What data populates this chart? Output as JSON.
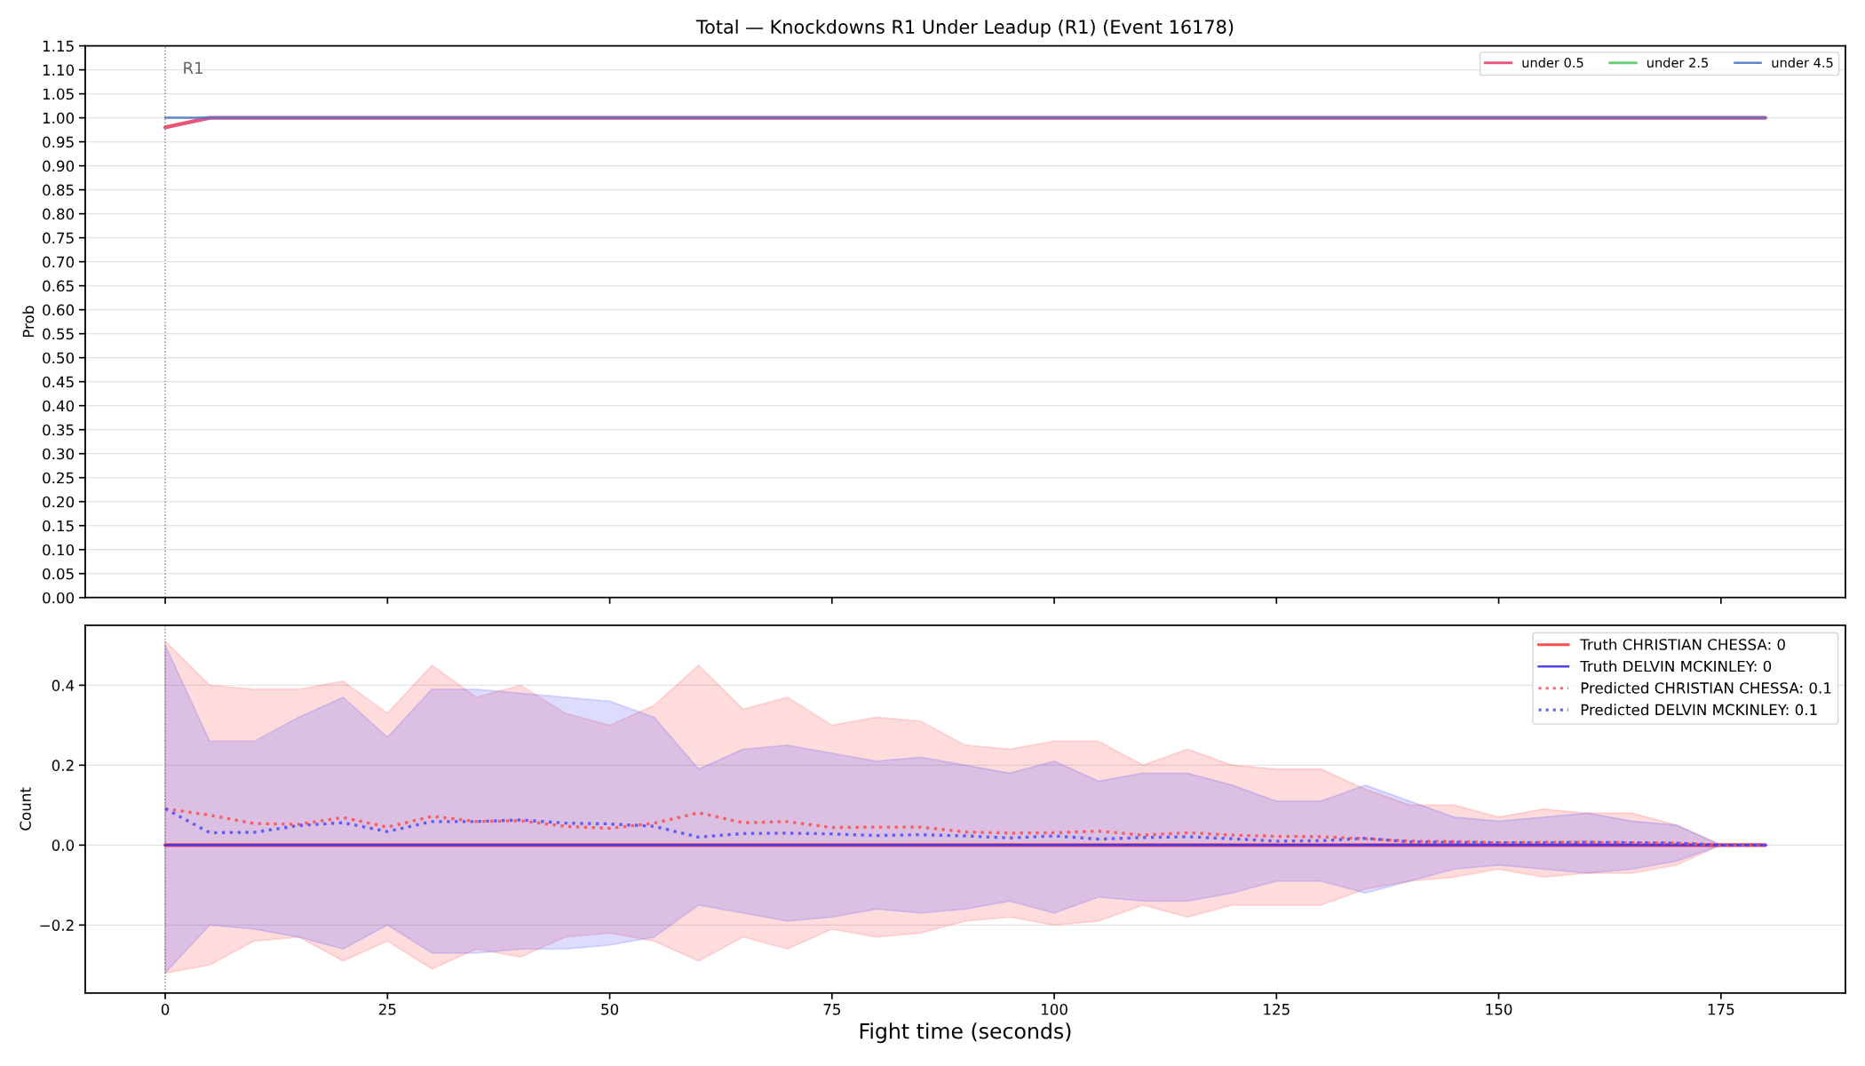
{
  "chart_data": [
    {
      "type": "line",
      "title": "Total — Knockdowns R1 Under Leadup (R1) (Event 16178)",
      "ylabel": "Prob",
      "x": [
        0,
        5,
        10,
        15,
        20,
        25,
        30,
        35,
        40,
        45,
        50,
        55,
        60,
        65,
        70,
        75,
        80,
        85,
        90,
        95,
        100,
        105,
        110,
        115,
        120,
        125,
        130,
        135,
        140,
        145,
        150,
        155,
        160,
        165,
        170,
        175,
        180
      ],
      "series": [
        {
          "name": "under 0.5",
          "color": "#e8446a",
          "values": [
            0.98,
            1,
            1,
            1,
            1,
            1,
            1,
            1,
            1,
            1,
            1,
            1,
            1,
            1,
            1,
            1,
            1,
            1,
            1,
            1,
            1,
            1,
            1,
            1,
            1,
            1,
            1,
            1,
            1,
            1,
            1,
            1,
            1,
            1,
            1,
            1,
            1
          ]
        },
        {
          "name": "under 2.5",
          "color": "#5cc46a",
          "values": [
            null,
            null,
            null,
            null,
            null,
            null,
            null,
            null,
            null,
            null,
            null,
            null,
            null,
            null,
            null,
            null,
            null,
            null,
            null,
            null,
            null,
            null,
            null,
            null,
            null,
            null,
            null,
            null,
            null,
            null,
            null,
            null,
            null,
            null,
            null,
            null,
            null
          ]
        },
        {
          "name": "under 4.5",
          "color": "#4a78c8",
          "values": [
            1,
            1,
            1,
            1,
            1,
            1,
            1,
            1,
            1,
            1,
            1,
            1,
            1,
            1,
            1,
            1,
            1,
            1,
            1,
            1,
            1,
            1,
            1,
            1,
            1,
            1,
            1,
            1,
            1,
            1,
            1,
            1,
            1,
            1,
            1,
            1,
            1
          ]
        }
      ],
      "xlim": [
        -9,
        189
      ],
      "xticks": [
        0,
        25,
        50,
        75,
        100,
        125,
        150,
        175
      ],
      "ylim": [
        0,
        1.15
      ],
      "yticks": [
        {
          "value": 0,
          "label": "0.00"
        },
        0.05,
        {
          "value": 0.1,
          "label": "0.10"
        },
        0.15,
        {
          "value": 0.2,
          "label": "0.20"
        },
        0.25,
        {
          "value": 0.3,
          "label": "0.30"
        },
        0.35,
        {
          "value": 0.4,
          "label": "0.40"
        },
        0.45,
        {
          "value": 0.5,
          "label": "0.50"
        },
        0.55,
        {
          "value": 0.6,
          "label": "0.60"
        },
        0.65,
        {
          "value": 0.7,
          "label": "0.70"
        },
        0.75,
        {
          "value": 0.8,
          "label": "0.80"
        },
        0.85,
        {
          "value": 0.9,
          "label": "0.90"
        },
        0.95,
        {
          "value": 1,
          "label": "1.00"
        },
        1.05,
        {
          "value": 1.1,
          "label": "1.10"
        },
        1.15
      ],
      "tick_labels": "y",
      "grid": "y",
      "legend": "top right",
      "line_style": "solid",
      "ref_lines": [
        {
          "axis": "x",
          "value": 0,
          "label": "R1",
          "color": "#808080",
          "line_style": "dotted"
        }
      ]
    },
    {
      "type": "line",
      "xlabel": "Fight time (seconds)",
      "ylabel": "Count",
      "x": [
        0,
        5,
        10,
        15,
        20,
        25,
        30,
        35,
        40,
        45,
        50,
        55,
        60,
        65,
        70,
        75,
        80,
        85,
        90,
        95,
        100,
        105,
        110,
        115,
        120,
        125,
        130,
        135,
        140,
        145,
        150,
        155,
        160,
        165,
        170,
        175,
        180
      ],
      "series": [
        {
          "name": "Truth CHRISTIAN CHESSA: 0",
          "color": "#ff3c3c",
          "line_style": "solid",
          "values": [
            0,
            0,
            0,
            0,
            0,
            0,
            0,
            0,
            0,
            0,
            0,
            0,
            0,
            0,
            0,
            0,
            0,
            0,
            0,
            0,
            0,
            0,
            0,
            0,
            0,
            0,
            0,
            0,
            0,
            0,
            0,
            0,
            0,
            0,
            0,
            0,
            0
          ]
        },
        {
          "name": "Truth DELVIN MCKINLEY: 0",
          "color": "#3c32f0",
          "line_style": "solid",
          "values": [
            0,
            0,
            0,
            0,
            0,
            0,
            0,
            0,
            0,
            0,
            0,
            0,
            0,
            0,
            0,
            0,
            0,
            0,
            0,
            0,
            0,
            0,
            0,
            0,
            0,
            0,
            0,
            0,
            0,
            0,
            0,
            0,
            0,
            0,
            0,
            0,
            0
          ]
        },
        {
          "name": "Predicted CHRISTIAN CHESSA: 0.1",
          "color": "#ff5050",
          "line_style": "dotted",
          "values": [
            0.091,
            0.075,
            0.054,
            0.052,
            0.069,
            0.045,
            0.072,
            0.059,
            0.061,
            0.047,
            0.042,
            0.055,
            0.081,
            0.056,
            0.059,
            0.044,
            0.045,
            0.045,
            0.033,
            0.03,
            0.031,
            0.035,
            0.025,
            0.031,
            0.025,
            0.022,
            0.021,
            0.016,
            0.01,
            0.009,
            0.006,
            0.007,
            0.007,
            0.006,
            0.005,
            0,
            0
          ],
          "lower": [
            -0.32,
            -0.3,
            -0.24,
            -0.23,
            -0.29,
            -0.24,
            -0.31,
            -0.26,
            -0.28,
            -0.23,
            -0.22,
            -0.24,
            -0.29,
            -0.23,
            -0.26,
            -0.21,
            -0.23,
            -0.22,
            -0.19,
            -0.18,
            -0.2,
            -0.19,
            -0.15,
            -0.18,
            -0.15,
            -0.15,
            -0.15,
            -0.11,
            -0.09,
            -0.08,
            -0.06,
            -0.08,
            -0.07,
            -0.07,
            -0.05,
            0,
            0
          ],
          "upper": [
            0.51,
            0.4,
            0.39,
            0.39,
            0.41,
            0.33,
            0.45,
            0.37,
            0.4,
            0.33,
            0.3,
            0.35,
            0.45,
            0.34,
            0.37,
            0.3,
            0.32,
            0.31,
            0.25,
            0.24,
            0.26,
            0.26,
            0.2,
            0.24,
            0.2,
            0.19,
            0.19,
            0.14,
            0.1,
            0.1,
            0.07,
            0.09,
            0.08,
            0.08,
            0.05,
            0,
            0
          ]
        },
        {
          "name": "Predicted DELVIN MCKINLEY: 0.1",
          "color": "#5050ff",
          "line_style": "dotted",
          "values": [
            0.091,
            0.031,
            0.032,
            0.049,
            0.056,
            0.034,
            0.059,
            0.059,
            0.063,
            0.055,
            0.053,
            0.047,
            0.02,
            0.029,
            0.03,
            0.028,
            0.024,
            0.026,
            0.023,
            0.018,
            0.023,
            0.015,
            0.019,
            0.021,
            0.016,
            0.01,
            0.011,
            0.017,
            0.008,
            0.007,
            0.006,
            0.006,
            0.007,
            0.006,
            0.005,
            0,
            0
          ],
          "lower": [
            -0.32,
            -0.2,
            -0.21,
            -0.23,
            -0.26,
            -0.2,
            -0.27,
            -0.27,
            -0.26,
            -0.26,
            -0.25,
            -0.23,
            -0.15,
            -0.17,
            -0.19,
            -0.18,
            -0.16,
            -0.17,
            -0.16,
            -0.14,
            -0.17,
            -0.13,
            -0.14,
            -0.14,
            -0.12,
            -0.09,
            -0.09,
            -0.12,
            -0.09,
            -0.06,
            -0.05,
            -0.06,
            -0.07,
            -0.06,
            -0.04,
            0,
            0
          ],
          "upper": [
            0.5,
            0.26,
            0.26,
            0.32,
            0.37,
            0.27,
            0.39,
            0.39,
            0.38,
            0.37,
            0.36,
            0.32,
            0.19,
            0.24,
            0.25,
            0.23,
            0.21,
            0.22,
            0.2,
            0.18,
            0.21,
            0.16,
            0.18,
            0.18,
            0.15,
            0.11,
            0.11,
            0.15,
            0.11,
            0.07,
            0.06,
            0.07,
            0.08,
            0.06,
            0.05,
            0,
            0
          ]
        }
      ],
      "xlim": [
        -9,
        189
      ],
      "xticks": [
        0,
        25,
        50,
        75,
        100,
        125,
        150,
        175
      ],
      "ylim": [
        -0.37,
        0.55
      ],
      "yticks": [
        {
          "value": -0.2,
          "label": "−0.2"
        },
        {
          "value": 0,
          "label": "0.0"
        },
        0.2,
        0.4
      ],
      "grid": "y",
      "legend": "top right",
      "ref_lines": [
        {
          "axis": "x",
          "value": 0,
          "color": "#808080",
          "line_style": "dotted"
        }
      ]
    }
  ]
}
